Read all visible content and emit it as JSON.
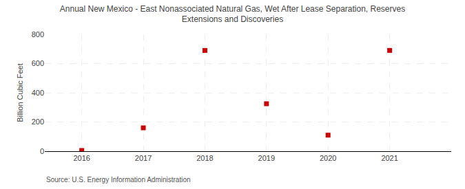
{
  "chart_data": {
    "type": "scatter",
    "title": "Annual New Mexico - East Nonassociated Natural Gas, Wet After Lease Separation, Reserves\nExtensions and Discoveries",
    "ylabel": "Billion Cubic Feet",
    "annotations": [
      "Source: U.S. Energy Information Administration"
    ],
    "x": [
      2016,
      2017,
      2018,
      2019,
      2020,
      2021
    ],
    "values": [
      5,
      160,
      690,
      325,
      110,
      690
    ],
    "color": "#CC0000",
    "marker": "square",
    "xlim": [
      2015.4,
      2022.0
    ],
    "xticks": [
      2016,
      2017,
      2018,
      2019,
      2020,
      2021
    ],
    "ylim": [
      0,
      800
    ],
    "yticks": [
      0,
      200,
      400,
      600,
      800
    ],
    "grid": true
  }
}
